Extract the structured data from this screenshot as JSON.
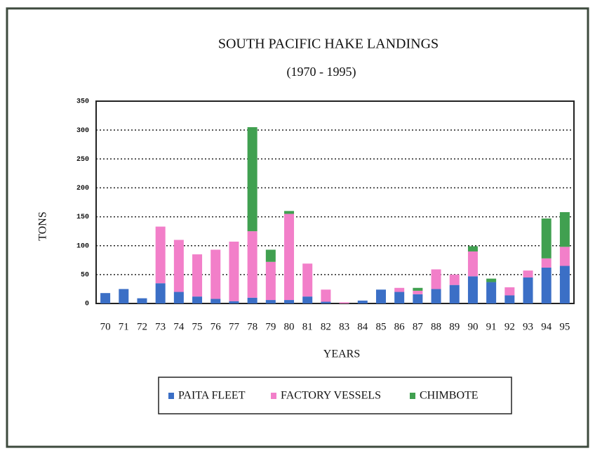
{
  "chart_data": {
    "type": "bar",
    "stacked": true,
    "title": "SOUTH PACIFIC HAKE LANDINGS",
    "subtitle": "(1970 - 1995)",
    "x_label": "YEARS",
    "y_label": "TONS",
    "categories": [
      "70",
      "71",
      "72",
      "73",
      "74",
      "75",
      "76",
      "77",
      "78",
      "79",
      "80",
      "81",
      "82",
      "83",
      "84",
      "85",
      "86",
      "87",
      "88",
      "89",
      "90",
      "91",
      "92",
      "93",
      "94",
      "95"
    ],
    "series": [
      {
        "name": "PAITA FLEET",
        "color": "#3b6fc6",
        "values": [
          18,
          25,
          9,
          35,
          20,
          12,
          8,
          4,
          10,
          6,
          6,
          12,
          3,
          0,
          5,
          24,
          20,
          16,
          25,
          32,
          47,
          37,
          14,
          45,
          62,
          65
        ]
      },
      {
        "name": "FACTORY VESSELS",
        "color": "#f27fc9",
        "values": [
          0,
          0,
          0,
          98,
          90,
          73,
          85,
          103,
          115,
          66,
          149,
          57,
          21,
          2,
          0,
          0,
          7,
          6,
          34,
          18,
          43,
          0,
          14,
          12,
          16,
          33
        ]
      },
      {
        "name": "CHIMBOTE",
        "color": "#40a050",
        "values": [
          0,
          0,
          0,
          0,
          0,
          0,
          0,
          0,
          180,
          21,
          5,
          0,
          0,
          0,
          0,
          0,
          0,
          5,
          0,
          0,
          9,
          6,
          0,
          0,
          69,
          60
        ]
      }
    ],
    "ylim": [
      0,
      350
    ],
    "yticks": [
      0,
      50,
      100,
      150,
      200,
      250,
      300,
      350
    ],
    "grid": true,
    "legend": "bottom"
  }
}
